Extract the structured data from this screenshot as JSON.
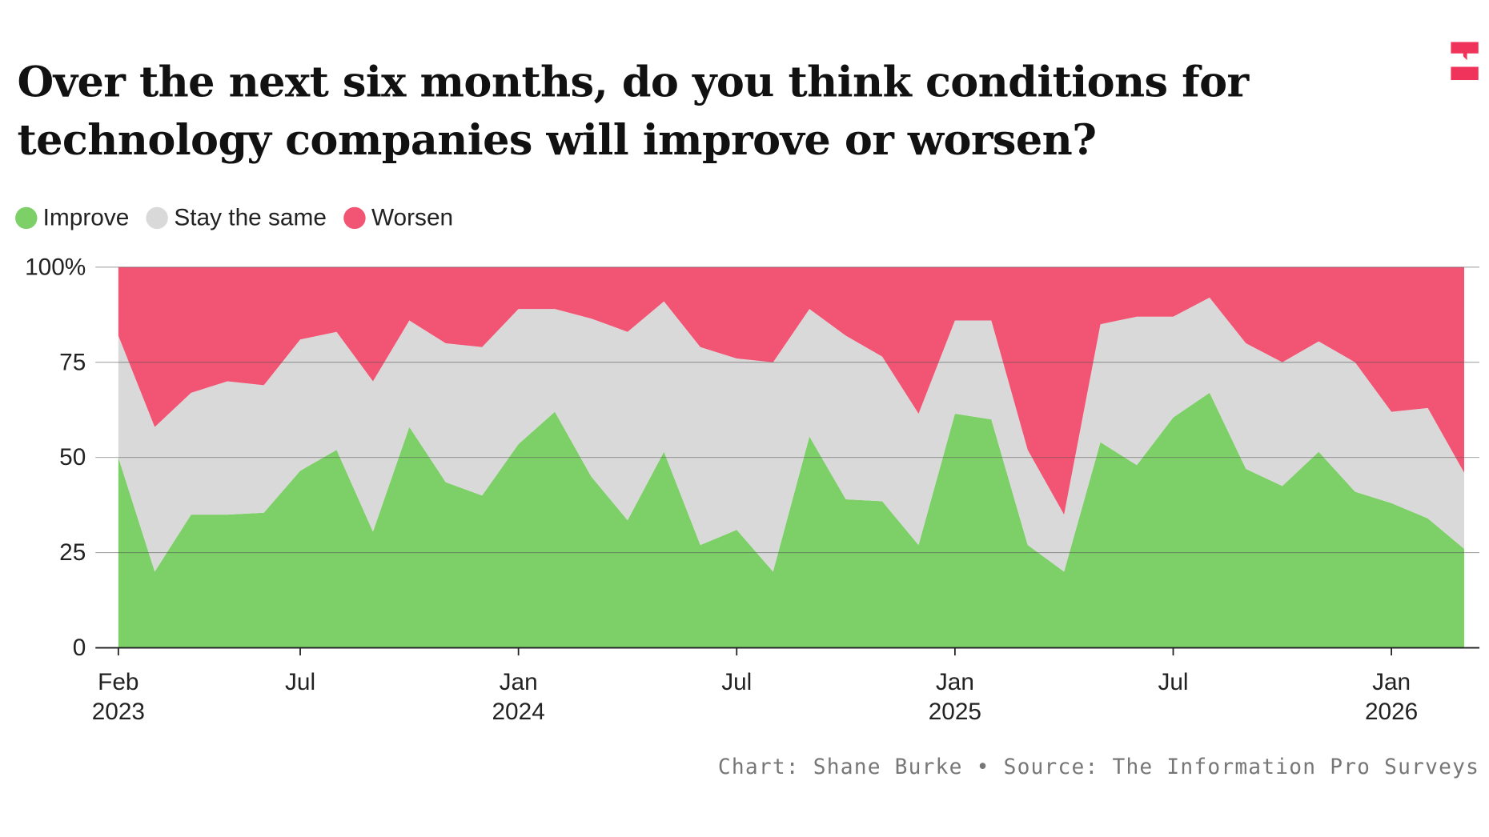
{
  "title": "Over the next six months, do you think conditions for technology companies will improve or worsen?",
  "footer": {
    "credit": "Chart: Shane Burke",
    "separator": "•",
    "source": "Source: The Information Pro Surveys"
  },
  "logo": {
    "icon": "the-information-logo",
    "color": "#f0335a"
  },
  "chart_data": {
    "type": "area",
    "stacked": true,
    "normalized": true,
    "ylim": [
      0,
      100
    ],
    "y_ticks": [
      "0",
      "25",
      "50",
      "75",
      "100%"
    ],
    "x_ticks": [
      {
        "month": "2023-02",
        "line1": "Feb",
        "line2": "2023"
      },
      {
        "month": "2023-07",
        "line1": "Jul",
        "line2": ""
      },
      {
        "month": "2024-01",
        "line1": "Jan",
        "line2": "2024"
      },
      {
        "month": "2024-07",
        "line1": "Jul",
        "line2": ""
      },
      {
        "month": "2025-01",
        "line1": "Jan",
        "line2": "2025"
      },
      {
        "month": "2025-07",
        "line1": "Jul",
        "line2": ""
      },
      {
        "month": "2026-01",
        "line1": "Jan",
        "line2": "2026"
      }
    ],
    "x": [
      "2023-02",
      "2023-03",
      "2023-04",
      "2023-05",
      "2023-06",
      "2023-07",
      "2023-08",
      "2023-09",
      "2023-10",
      "2023-11",
      "2023-12",
      "2024-01",
      "2024-02",
      "2024-03",
      "2024-04",
      "2024-05",
      "2024-06",
      "2024-07",
      "2024-08",
      "2024-09",
      "2024-10",
      "2024-11",
      "2024-12",
      "2025-01",
      "2025-02",
      "2025-03",
      "2025-04",
      "2025-05",
      "2025-06",
      "2025-07",
      "2025-08",
      "2025-09",
      "2025-10",
      "2025-11",
      "2025-12",
      "2026-01",
      "2026-02",
      "2026-03"
    ],
    "grid": true,
    "legend_position": "top-left",
    "series": [
      {
        "name": "Improve",
        "color": "#7dcf68",
        "values": [
          50,
          20,
          35,
          35,
          35.5,
          46.5,
          52,
          30.5,
          58,
          43.5,
          40,
          53.5,
          62,
          45,
          33.5,
          51.5,
          27,
          31,
          20,
          55.5,
          39,
          38.5,
          27,
          61.5,
          60,
          27,
          20,
          54,
          48,
          60.5,
          67,
          47,
          42.5,
          51.5,
          41,
          38,
          34,
          26
        ]
      },
      {
        "name": "Stay the same",
        "color": "#d9d9d9",
        "values": [
          32,
          38,
          32,
          35,
          33.5,
          34.5,
          31,
          39.5,
          28,
          36.5,
          39,
          35.5,
          27,
          41.5,
          49.5,
          39.5,
          52,
          45,
          55,
          33.5,
          43,
          38,
          34.5,
          24.5,
          26,
          25,
          15,
          31,
          39,
          26.5,
          25,
          33,
          32.5,
          29,
          34,
          24,
          29,
          20
        ]
      },
      {
        "name": "Worsen",
        "color": "#f25574",
        "values": [
          18,
          42,
          33,
          30,
          31,
          19,
          17,
          30,
          14,
          20,
          21,
          11,
          11,
          13.5,
          17,
          9,
          21,
          24,
          25,
          11,
          18,
          23.5,
          38.5,
          14,
          14,
          48,
          65,
          15,
          13,
          13,
          8,
          20,
          25,
          19.5,
          25,
          38,
          37,
          54
        ]
      }
    ]
  }
}
